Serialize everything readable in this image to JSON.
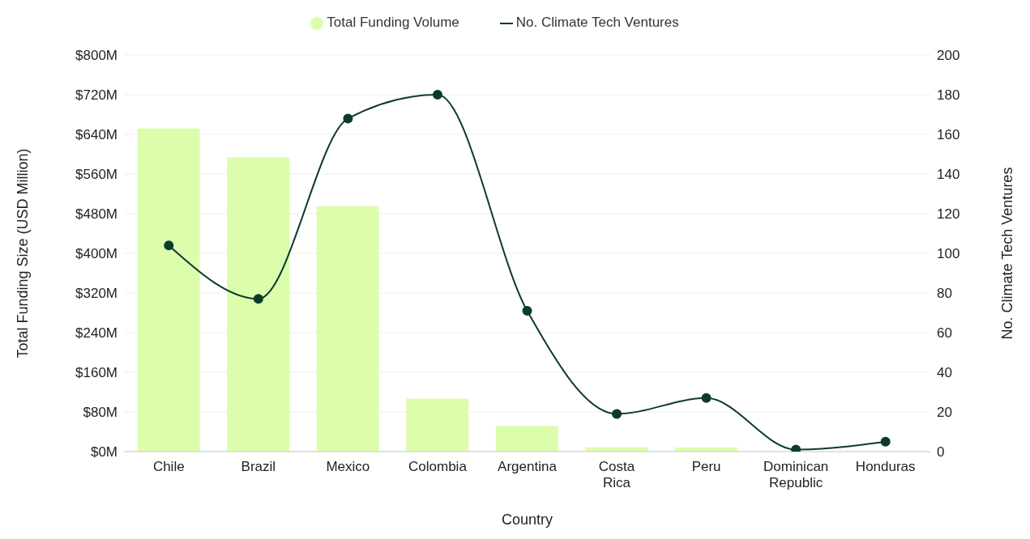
{
  "chart_data": {
    "type": "bar",
    "xlabel": "Country",
    "ylabel": "Total Funding Size (USD Million)",
    "y2label": "No. Climate Tech Ventures",
    "categories": [
      "Chile",
      "Brazil",
      "Mexico",
      "Colombia",
      "Argentina",
      "Costa Rica",
      "Peru",
      "Dominican Republic",
      "Honduras"
    ],
    "series": [
      {
        "name": "Total Funding Volume",
        "color": "#dcfdac",
        "values": [
          652,
          594,
          495,
          107,
          52,
          9,
          8,
          0,
          0
        ]
      },
      {
        "name": "No. Climate Tech Ventures",
        "type": "line",
        "axis": "y2",
        "color": "#0d3b2a",
        "values": [
          104,
          77,
          168,
          180,
          71,
          19,
          27,
          1,
          5
        ]
      }
    ],
    "ylim": [
      0,
      800
    ],
    "yticks": [
      {
        "value": 0,
        "label": "$0M"
      },
      {
        "value": 80,
        "label": "$80M"
      },
      {
        "value": 160,
        "label": "$160M"
      },
      {
        "value": 240,
        "label": "$240M"
      },
      {
        "value": 320,
        "label": "$320M"
      },
      {
        "value": 400,
        "label": "$400M"
      },
      {
        "value": 480,
        "label": "$480M"
      },
      {
        "value": 560,
        "label": "$560M"
      },
      {
        "value": 640,
        "label": "$640M"
      },
      {
        "value": 720,
        "label": "$720M"
      },
      {
        "value": 800,
        "label": "$800M"
      }
    ],
    "y2lim": [
      0,
      200
    ],
    "y2ticks": [
      0,
      20,
      40,
      60,
      80,
      100,
      120,
      140,
      160,
      180,
      200
    ],
    "grid": "y",
    "legend": "top",
    "marker": "circle"
  }
}
